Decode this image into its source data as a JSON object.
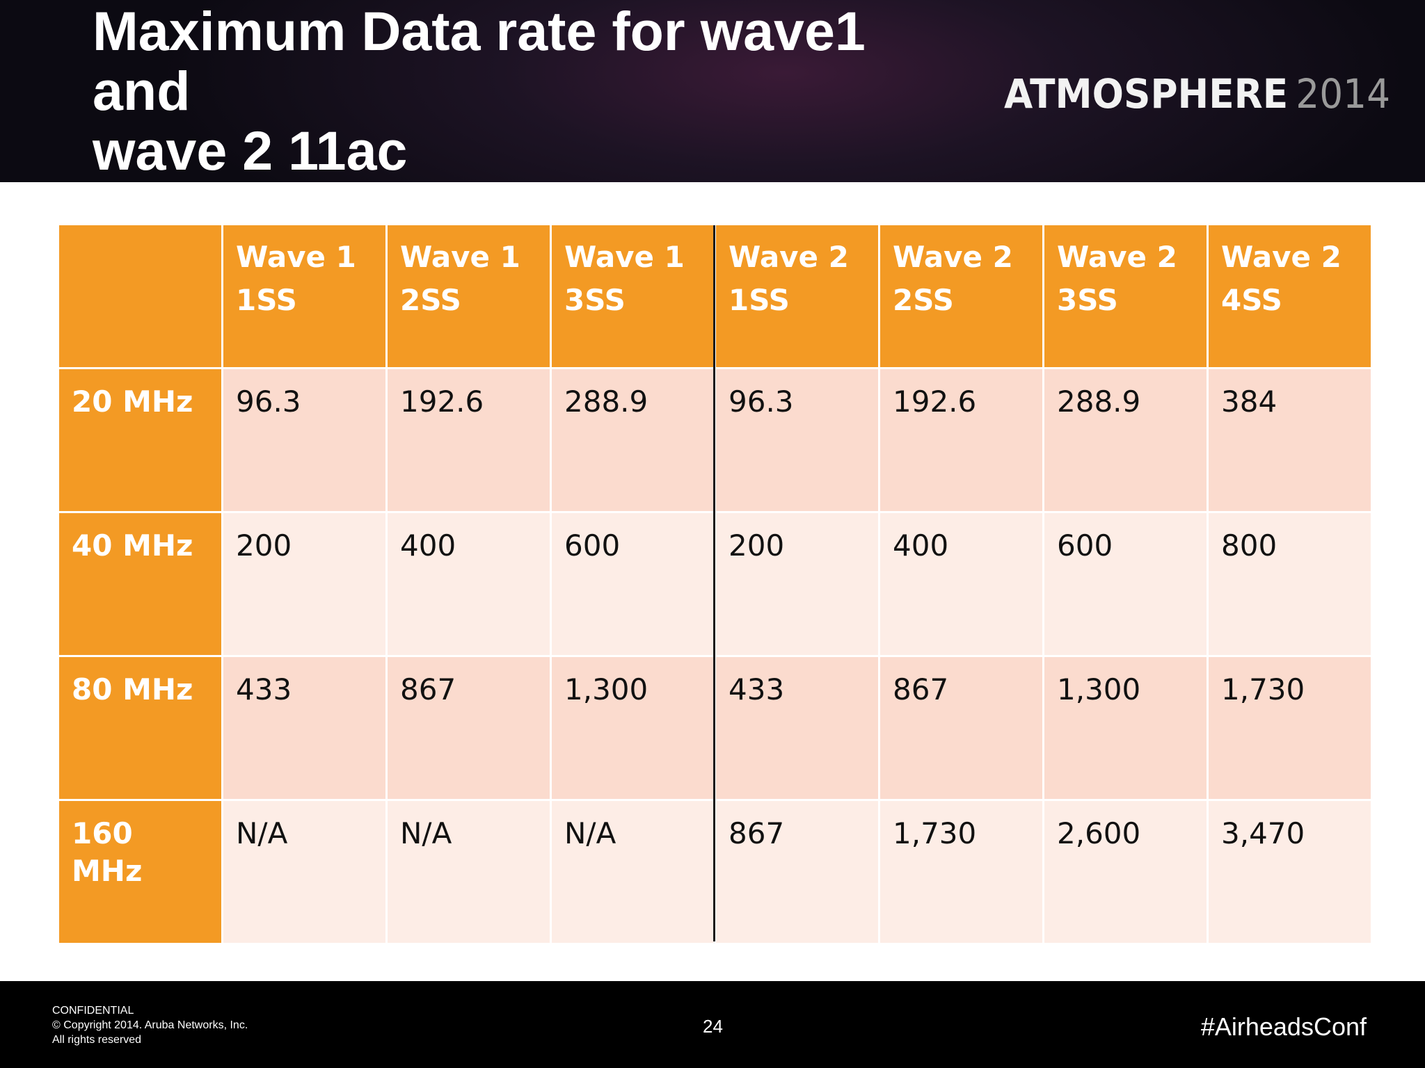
{
  "slide": {
    "title_lines": [
      "Maximum Data rate for wave1",
      "and",
      "wave 2 11ac"
    ],
    "logo": {
      "word": "ATMOSPHERE",
      "year": "2014"
    }
  },
  "table": {
    "corner": "",
    "columns": [
      {
        "line1": "Wave 1",
        "line2": "1SS"
      },
      {
        "line1": "Wave 1",
        "line2": "2SS"
      },
      {
        "line1": "Wave 1",
        "line2": "3SS"
      },
      {
        "line1": "Wave 2",
        "line2": "1SS"
      },
      {
        "line1": "Wave 2",
        "line2": "2SS"
      },
      {
        "line1": "Wave 2",
        "line2": "3SS"
      },
      {
        "line1": "Wave 2",
        "line2": "4SS"
      }
    ],
    "rows": [
      {
        "label": "20 MHz",
        "cells": [
          "96.3",
          "192.6",
          "288.9",
          "96.3",
          "192.6",
          "288.9",
          "384"
        ]
      },
      {
        "label": "40 MHz",
        "cells": [
          "200",
          "400",
          "600",
          "200",
          "400",
          "600",
          "800"
        ]
      },
      {
        "label": "80 MHz",
        "cells": [
          "433",
          "867",
          "1,300",
          "433",
          "867",
          "1,300",
          "1,730"
        ]
      },
      {
        "label": "160 MHz",
        "cells": [
          "N/A",
          "N/A",
          "N/A",
          "867",
          "1,730",
          "2,600",
          "3,470"
        ]
      }
    ]
  },
  "footer": {
    "legal_lines": [
      "CONFIDENTIAL",
      "© Copyright 2014. Aruba Networks, Inc.",
      "All rights reserved"
    ],
    "page_number": "24",
    "hashtag": "#AirheadsConf"
  },
  "colors": {
    "header_orange": "#f39a24",
    "row_odd": "#fbdbce",
    "row_even": "#fdede6",
    "footer_bg": "#000000"
  }
}
